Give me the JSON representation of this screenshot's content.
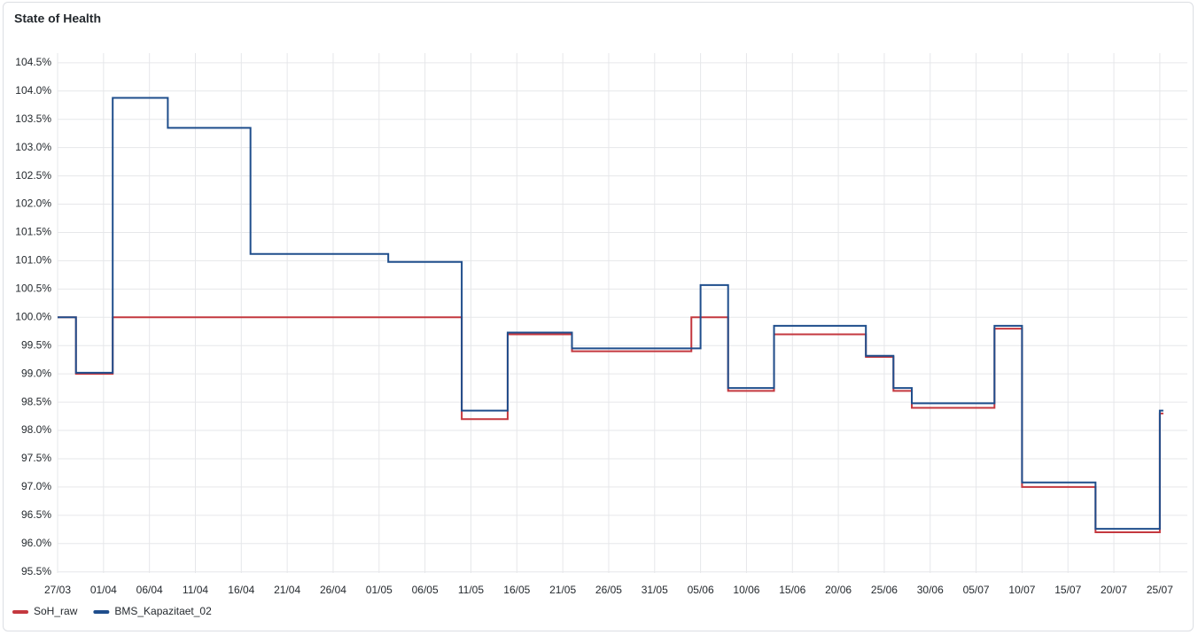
{
  "chart_data": {
    "type": "step-line",
    "title": "State of Health",
    "xlim": [
      "27/03",
      "28/07"
    ],
    "xticks": [
      "27/03",
      "01/04",
      "06/04",
      "11/04",
      "16/04",
      "21/04",
      "26/04",
      "01/05",
      "06/05",
      "11/05",
      "16/05",
      "21/05",
      "26/05",
      "31/05",
      "05/06",
      "10/06",
      "15/06",
      "20/06",
      "25/06",
      "30/06",
      "05/07",
      "10/07",
      "15/07",
      "20/07",
      "25/07"
    ],
    "ylim": [
      95.48,
      104.67
    ],
    "yticks": [
      {
        "value": 95.5,
        "label": "95.5%"
      },
      {
        "value": 96,
        "label": "96.0%"
      },
      {
        "value": 96.5,
        "label": "96.5%"
      },
      {
        "value": 97,
        "label": "97.0%"
      },
      {
        "value": 97.5,
        "label": "97.5%"
      },
      {
        "value": 98,
        "label": "98.0%"
      },
      {
        "value": 98.5,
        "label": "98.5%"
      },
      {
        "value": 99,
        "label": "99.0%"
      },
      {
        "value": 99.5,
        "label": "99.5%"
      },
      {
        "value": 100,
        "label": "100.0%"
      },
      {
        "value": 100.5,
        "label": "100.5%"
      },
      {
        "value": 101,
        "label": "101.0%"
      },
      {
        "value": 101.5,
        "label": "101.5%"
      },
      {
        "value": 102,
        "label": "102.0%"
      },
      {
        "value": 102.5,
        "label": "102.5%"
      },
      {
        "value": 103,
        "label": "103.0%"
      },
      {
        "value": 103.5,
        "label": "103.5%"
      },
      {
        "value": 104,
        "label": "104.0%"
      },
      {
        "value": 104.5,
        "label": "104.5%"
      }
    ],
    "grid": true,
    "legend": "bottom-left",
    "series": [
      {
        "name": "SoH_raw",
        "color": "#c4383f",
        "x": [
          "27/03",
          "29/03",
          "02/04",
          "10/05",
          "15/05",
          "22/05",
          "04/06",
          "08/06",
          "13/06",
          "23/06",
          "26/06",
          "28/06",
          "07/07",
          "10/07",
          "18/07",
          "25/07"
        ],
        "values": [
          100.0,
          99.0,
          100.0,
          98.2,
          99.7,
          99.4,
          100.0,
          98.7,
          99.7,
          99.3,
          98.7,
          98.4,
          99.8,
          97.0,
          96.2,
          98.3
        ]
      },
      {
        "name": "BMS_Kapazitaet_02",
        "color": "#1f4e8c",
        "x": [
          "27/03",
          "29/03",
          "02/04",
          "08/04",
          "17/04",
          "02/05",
          "10/05",
          "15/05",
          "22/05",
          "05/06",
          "08/06",
          "13/06",
          "23/06",
          "26/06",
          "28/06",
          "07/07",
          "10/07",
          "18/07",
          "25/07"
        ],
        "values": [
          100.0,
          99.02,
          103.88,
          103.35,
          101.12,
          100.98,
          98.35,
          99.73,
          99.45,
          100.57,
          98.75,
          99.85,
          99.32,
          98.75,
          98.48,
          99.85,
          97.08,
          96.26,
          98.35
        ]
      }
    ]
  }
}
